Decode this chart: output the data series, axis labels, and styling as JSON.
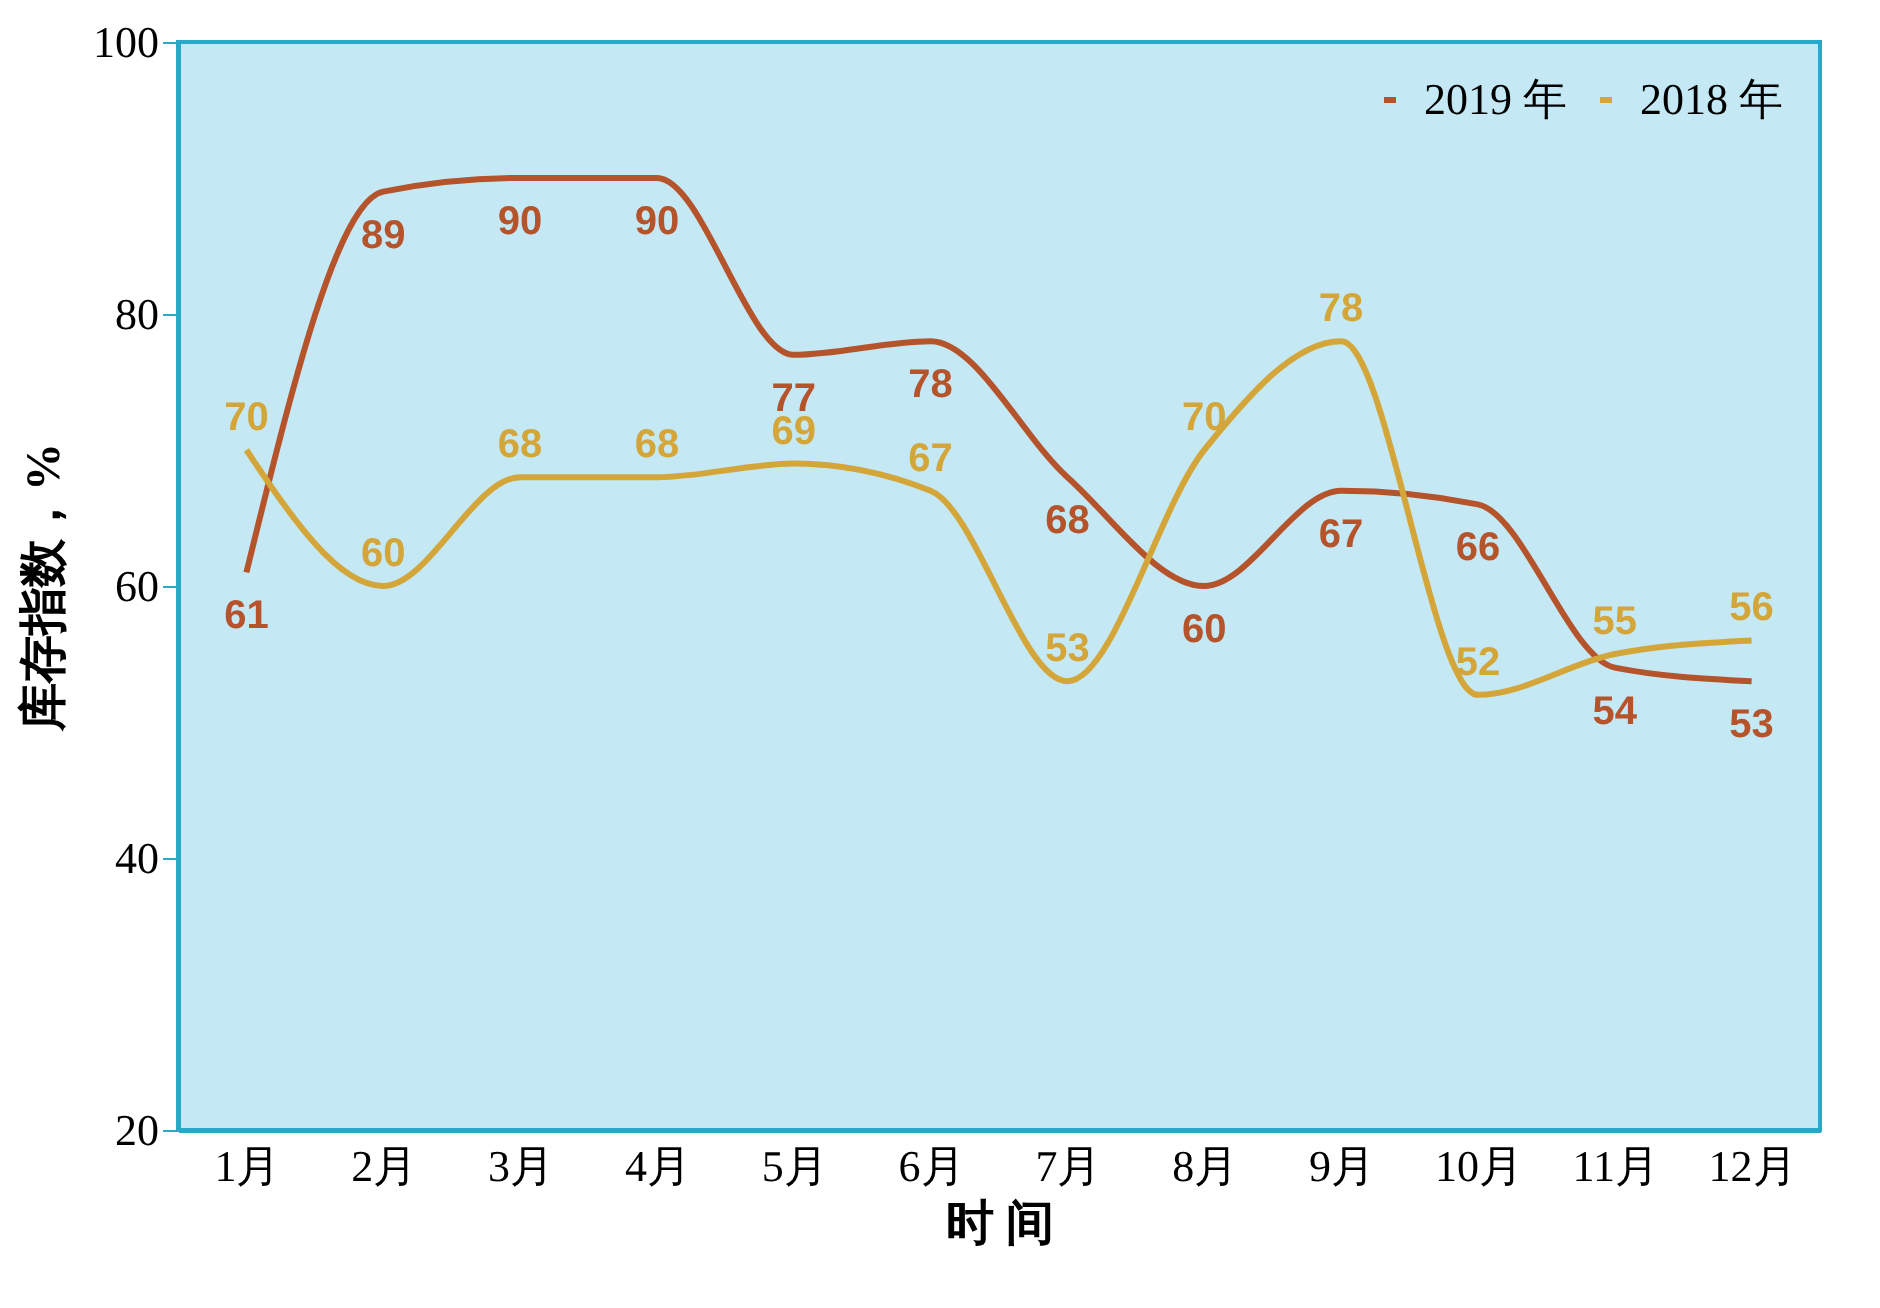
{
  "chart_data": {
    "type": "line",
    "xlabel": "时 间",
    "ylabel": "库存指数，%",
    "categories": [
      "1月",
      "2月",
      "3月",
      "4月",
      "5月",
      "6月",
      "7月",
      "8月",
      "9月",
      "10月",
      "11月",
      "12月"
    ],
    "series": [
      {
        "name": "2019 年",
        "color": "#b5532b",
        "values": [
          61,
          89,
          90,
          90,
          77,
          78,
          68,
          60,
          67,
          66,
          54,
          53
        ]
      },
      {
        "name": "2018 年",
        "color": "#d4a63a",
        "values": [
          70,
          60,
          68,
          68,
          69,
          67,
          53,
          70,
          78,
          52,
          55,
          56
        ]
      }
    ],
    "ylim": [
      20,
      100
    ],
    "yticks": [
      20,
      40,
      60,
      80,
      100
    ],
    "grid": false,
    "legend": "top right",
    "data_labels": true,
    "marker": "none",
    "line_style": "solid"
  }
}
